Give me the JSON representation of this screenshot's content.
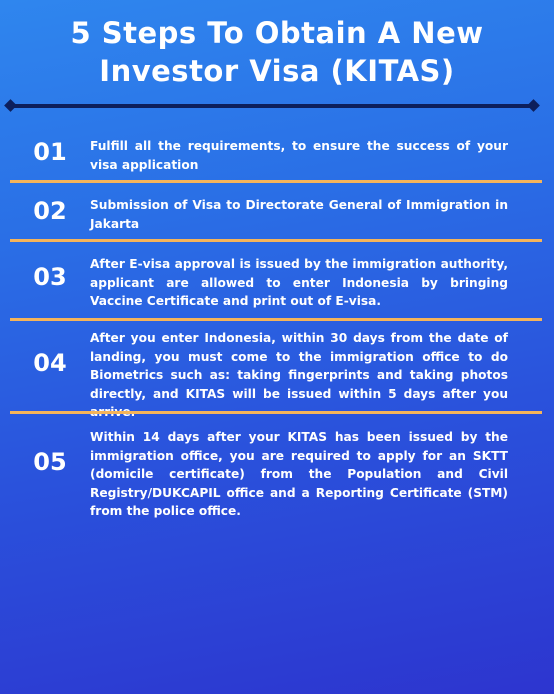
{
  "title": {
    "line1": "5 Steps To Obtain A New",
    "line2": "Investor Visa (KITAS)"
  },
  "steps": [
    {
      "number": "01",
      "text": "Fulfill all the requirements, to ensure the success of your visa application"
    },
    {
      "number": "02",
      "text": "Submission of Visa to Directorate General of Immigration in Jakarta"
    },
    {
      "number": "03",
      "text": "After E-visa approval is issued by the immigration authority, applicant are allowed to enter Indonesia by bringing Vaccine Certificate and print out of E-visa."
    },
    {
      "number": "04",
      "text": "After you enter Indonesia, within 30 days from the date of landing, you must come to the immigration office to do Biometrics such as: taking fingerprints and taking photos directly, and KITAS will be issued within 5 days after you arrive."
    },
    {
      "number": "05",
      "text": "Within 14 days after your KITAS has been issued by the immigration office, you are required to apply for an SKTT (domicile certificate) from the Population and Civil Registry/DUKCAPIL office and a Reporting Certificate (STM) from the police office."
    }
  ],
  "colors": {
    "background_top": "#2f86ee",
    "background_bottom": "#2d35cf",
    "divider": "#0d1f5c",
    "separator": "#f5b45a",
    "text": "#ffffff"
  }
}
